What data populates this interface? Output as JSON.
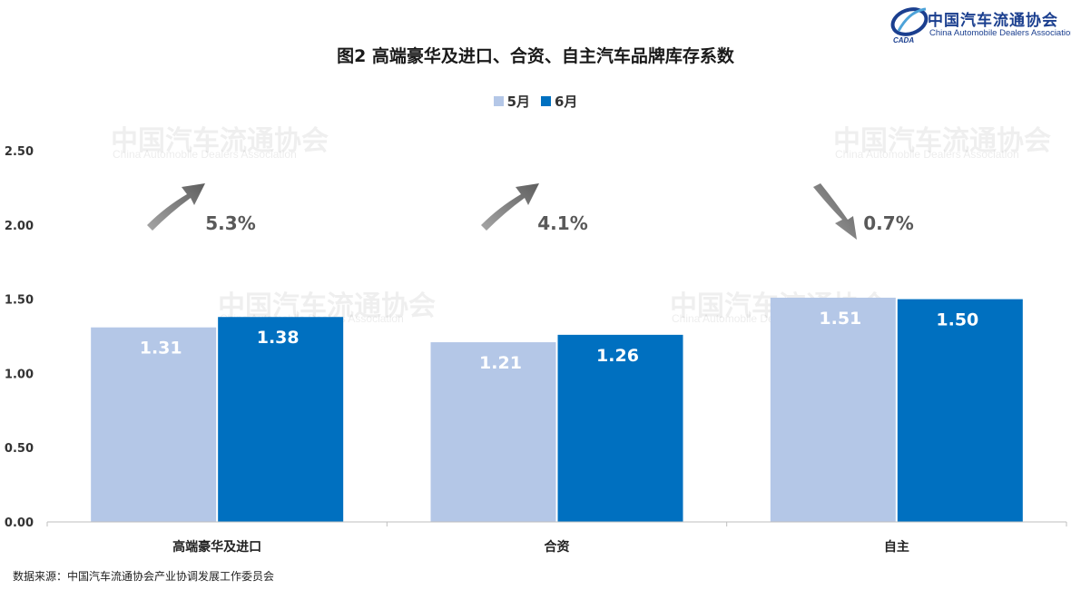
{
  "logo": {
    "name_cn": "中国汽车流通协会",
    "name_en": "China Automobile Dealers Association",
    "mark": "CADA"
  },
  "watermark": {
    "cn": "中国汽车流通协会",
    "en": "China Automobile Dealers Association"
  },
  "source": "数据来源：中国汽车流通协会产业协调发展工作委员会",
  "colors": {
    "may": "#b4c7e7",
    "june": "#0070c0",
    "arrow": "#7f7f7f"
  },
  "chart_data": {
    "type": "bar",
    "title": "图2  高端豪华及进口、合资、自主汽车品牌库存系数",
    "categories": [
      "高端豪华及进口",
      "合资",
      "自主"
    ],
    "series": [
      {
        "name": "5月",
        "values": [
          1.31,
          1.21,
          1.51
        ]
      },
      {
        "name": "6月",
        "values": [
          1.38,
          1.26,
          1.5
        ]
      }
    ],
    "value_labels": [
      [
        "1.31",
        "1.21",
        "1.51"
      ],
      [
        "1.38",
        "1.26",
        "1.50"
      ]
    ],
    "change_labels": [
      "5.3%",
      "4.1%",
      "0.7%"
    ],
    "change_direction": [
      "up",
      "up",
      "down"
    ],
    "yticks": [
      "0.00",
      "0.50",
      "1.00",
      "1.50",
      "2.00",
      "2.50"
    ],
    "ylim": [
      0,
      2.5
    ],
    "grid": false,
    "legend_position": "top"
  }
}
